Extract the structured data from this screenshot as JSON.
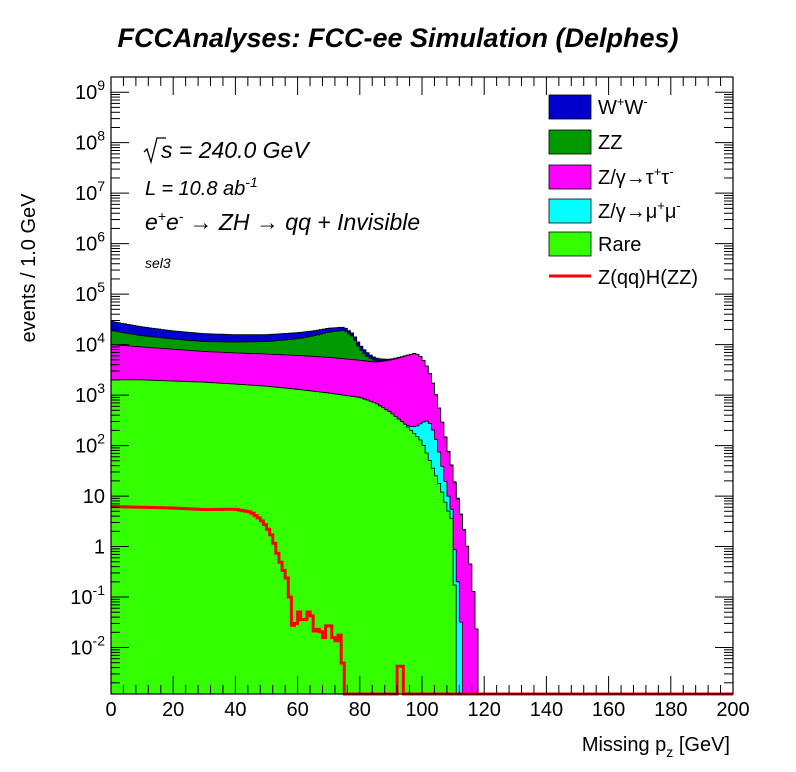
{
  "chart_data": {
    "type": "area",
    "stacked": true,
    "title": "FCCAnalyses: FCC-ee Simulation (Delphes)",
    "xlabel": "Missing p_z [GeV]",
    "ylabel": "events / 1.0 GeV",
    "xlim": [
      0,
      200
    ],
    "ylim": [
      0.0012,
      2000000000
    ],
    "log_y": true,
    "grid": false,
    "legend_position": "top-right",
    "x_ticks": [
      "0",
      "20",
      "40",
      "60",
      "80",
      "100",
      "120",
      "140",
      "160",
      "180",
      "200"
    ],
    "y_ticks": [
      {
        "value": 0.01,
        "base": "10",
        "exp": "-2"
      },
      {
        "value": 0.1,
        "base": "10",
        "exp": "-1"
      },
      {
        "value": 1,
        "base": "1",
        "exp": ""
      },
      {
        "value": 10,
        "base": "10",
        "exp": ""
      },
      {
        "value": 100,
        "base": "10",
        "exp": "2"
      },
      {
        "value": 1000,
        "base": "10",
        "exp": "3"
      },
      {
        "value": 10000,
        "base": "10",
        "exp": "4"
      },
      {
        "value": 100000,
        "base": "10",
        "exp": "5"
      },
      {
        "value": 1000000,
        "base": "10",
        "exp": "6"
      },
      {
        "value": 10000000,
        "base": "10",
        "exp": "7"
      },
      {
        "value": 100000000,
        "base": "10",
        "exp": "8"
      },
      {
        "value": 1000000000,
        "base": "10",
        "exp": "9"
      }
    ],
    "annotations": {
      "sqrt_s": "s = 240.0 GeV",
      "lumi_base": "L = 10.8 ab",
      "lumi_exp": "-1",
      "process_1": "e",
      "process_2": "e",
      "process_3": "→ ZH → qq + Invisible",
      "selection": "sel3"
    },
    "series": [
      {
        "name": "Rare",
        "color": "#33ff00",
        "points": [
          [
            0,
            2000
          ],
          [
            10,
            2000
          ],
          [
            20,
            1900
          ],
          [
            30,
            1800
          ],
          [
            40,
            1650
          ],
          [
            50,
            1500
          ],
          [
            60,
            1300
          ],
          [
            70,
            1100
          ],
          [
            80,
            900
          ],
          [
            85,
            700
          ],
          [
            90,
            450
          ],
          [
            95,
            250
          ],
          [
            100,
            120
          ],
          [
            102,
            60
          ],
          [
            104,
            30
          ],
          [
            106,
            15
          ],
          [
            108,
            6
          ],
          [
            110,
            3
          ],
          [
            111,
            0.01
          ]
        ]
      },
      {
        "name": "Z/γ→μ+μ-",
        "color": "#00ffff",
        "points": [
          [
            0,
            0.01
          ],
          [
            94,
            0.01
          ],
          [
            95,
            8
          ],
          [
            96,
            30
          ],
          [
            98,
            80
          ],
          [
            100,
            170
          ],
          [
            101,
            220
          ],
          [
            102,
            250
          ],
          [
            103,
            200
          ],
          [
            104,
            140
          ],
          [
            105,
            80
          ],
          [
            106,
            40
          ],
          [
            107,
            18
          ],
          [
            108,
            8
          ],
          [
            109,
            3
          ],
          [
            110,
            1.2
          ],
          [
            111,
            0.4
          ],
          [
            112,
            0.1
          ],
          [
            113,
            0.01
          ]
        ]
      },
      {
        "name": "Z/γ→τ+τ-",
        "color": "#ff00ff",
        "points": [
          [
            0,
            8000
          ],
          [
            10,
            7000
          ],
          [
            20,
            6200
          ],
          [
            30,
            5500
          ],
          [
            40,
            5200
          ],
          [
            50,
            5000
          ],
          [
            60,
            4800
          ],
          [
            70,
            4500
          ],
          [
            80,
            4000
          ],
          [
            85,
            3800
          ],
          [
            90,
            4500
          ],
          [
            95,
            5800
          ],
          [
            98,
            6500
          ],
          [
            100,
            5200
          ],
          [
            102,
            3000
          ],
          [
            104,
            1200
          ],
          [
            106,
            350
          ],
          [
            108,
            90
          ],
          [
            110,
            25
          ],
          [
            112,
            6
          ],
          [
            114,
            1.5
          ],
          [
            116,
            0.3
          ],
          [
            118,
            0.01
          ]
        ]
      },
      {
        "name": "ZZ",
        "color": "#009900",
        "points": [
          [
            0,
            9000
          ],
          [
            10,
            6000
          ],
          [
            20,
            4800
          ],
          [
            30,
            4200
          ],
          [
            40,
            4400
          ],
          [
            50,
            5000
          ],
          [
            60,
            7000
          ],
          [
            65,
            9000
          ],
          [
            70,
            12000
          ],
          [
            75,
            14000
          ],
          [
            78,
            9000
          ],
          [
            80,
            3500
          ],
          [
            83,
            900
          ],
          [
            85,
            300
          ],
          [
            88,
            80
          ],
          [
            90,
            20
          ],
          [
            95,
            8
          ],
          [
            100,
            3
          ],
          [
            105,
            1
          ],
          [
            110,
            0.3
          ],
          [
            114,
            0.01
          ]
        ]
      },
      {
        "name": "W+W-",
        "color": "#0000cc",
        "points": [
          [
            0,
            10000
          ],
          [
            10,
            7500
          ],
          [
            20,
            5800
          ],
          [
            30,
            5000
          ],
          [
            40,
            4500
          ],
          [
            50,
            4300
          ],
          [
            60,
            4200
          ],
          [
            70,
            3600
          ],
          [
            75,
            3000
          ],
          [
            80,
            1800
          ],
          [
            85,
            700
          ],
          [
            90,
            200
          ],
          [
            95,
            60
          ],
          [
            100,
            20
          ],
          [
            105,
            5
          ],
          [
            110,
            1
          ],
          [
            115,
            0.01
          ]
        ]
      }
    ],
    "signal": {
      "name": "Z(qq)H(ZZ)",
      "color": "#ff0000",
      "points": [
        [
          0,
          6.2
        ],
        [
          10,
          6
        ],
        [
          20,
          5.8
        ],
        [
          30,
          5.4
        ],
        [
          40,
          5.5
        ],
        [
          45,
          4.8
        ],
        [
          48,
          3.5
        ],
        [
          50,
          2.5
        ],
        [
          52,
          1.5
        ],
        [
          53,
          0.9
        ],
        [
          55,
          0.4
        ],
        [
          57,
          0.2
        ],
        [
          58,
          0.05
        ],
        [
          59,
          0.015
        ],
        [
          60,
          0.06
        ],
        [
          62,
          0.03
        ],
        [
          64,
          0.06
        ],
        [
          66,
          0.015
        ],
        [
          67,
          0.035
        ],
        [
          68,
          0.012
        ],
        [
          70,
          0.035
        ],
        [
          72,
          0.012
        ],
        [
          74,
          0.02
        ],
        [
          75,
          0.0012
        ],
        [
          92,
          0.0012
        ],
        [
          93,
          0.015
        ],
        [
          94,
          0.0012
        ],
        [
          200,
          0.0012
        ]
      ]
    }
  }
}
